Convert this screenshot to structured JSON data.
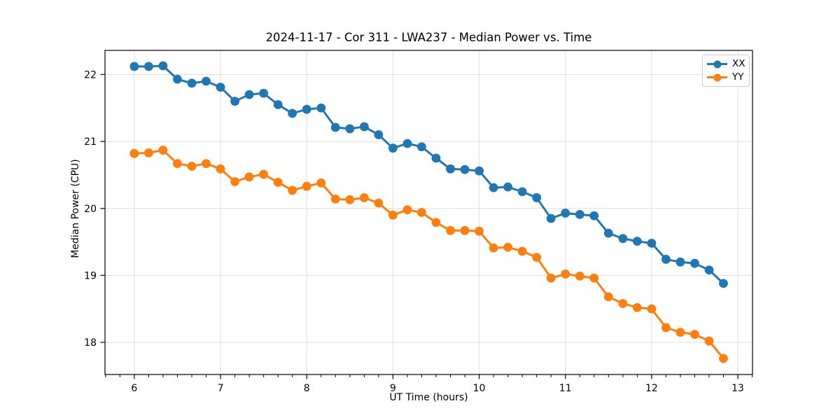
{
  "chart_data": {
    "type": "line",
    "title": "2024-11-17 - Cor 311 - LWA237 - Median Power vs. Time",
    "xlabel": "UT Time (hours)",
    "ylabel": "Median Power (CPU)",
    "xlim": [
      5.66,
      13.17
    ],
    "ylim": [
      17.52,
      22.36
    ],
    "xticks": [
      6,
      7,
      8,
      9,
      10,
      11,
      12,
      13
    ],
    "yticks": [
      18,
      19,
      20,
      21,
      22
    ],
    "x_minor_tick_step": 0.166667,
    "grid": true,
    "grid_color": "#dedede",
    "spine_color": "#000000",
    "legend_position": "upper right",
    "x": [
      6.0,
      6.167,
      6.333,
      6.5,
      6.667,
      6.833,
      7.0,
      7.167,
      7.333,
      7.5,
      7.667,
      7.833,
      8.0,
      8.167,
      8.333,
      8.5,
      8.667,
      8.833,
      9.0,
      9.167,
      9.333,
      9.5,
      9.667,
      9.833,
      10.0,
      10.167,
      10.333,
      10.5,
      10.667,
      10.833,
      11.0,
      11.167,
      11.333,
      11.5,
      11.667,
      11.833,
      12.0,
      12.167,
      12.333,
      12.5,
      12.667,
      12.833
    ],
    "series": [
      {
        "name": "XX",
        "color": "#1f77b4",
        "values": [
          22.12,
          22.12,
          22.13,
          21.93,
          21.87,
          21.9,
          21.81,
          21.6,
          21.7,
          21.72,
          21.55,
          21.42,
          21.48,
          21.5,
          21.21,
          21.19,
          21.22,
          21.1,
          20.9,
          20.97,
          20.92,
          20.75,
          20.59,
          20.58,
          20.56,
          20.31,
          20.32,
          20.25,
          20.16,
          19.85,
          19.93,
          19.91,
          19.89,
          19.63,
          19.55,
          19.51,
          19.48,
          19.24,
          19.2,
          19.18,
          19.08,
          18.88
        ]
      },
      {
        "name": "YY",
        "color": "#ff7f0e",
        "values": [
          20.82,
          20.83,
          20.87,
          20.67,
          20.63,
          20.67,
          20.59,
          20.4,
          20.47,
          20.51,
          20.39,
          20.27,
          20.33,
          20.38,
          20.14,
          20.13,
          20.16,
          20.08,
          19.9,
          19.98,
          19.94,
          19.79,
          19.67,
          19.67,
          19.66,
          19.41,
          19.42,
          19.36,
          19.27,
          18.96,
          19.02,
          18.99,
          18.96,
          18.68,
          18.58,
          18.52,
          18.5,
          18.22,
          18.15,
          18.12,
          18.02,
          17.76
        ]
      }
    ]
  }
}
